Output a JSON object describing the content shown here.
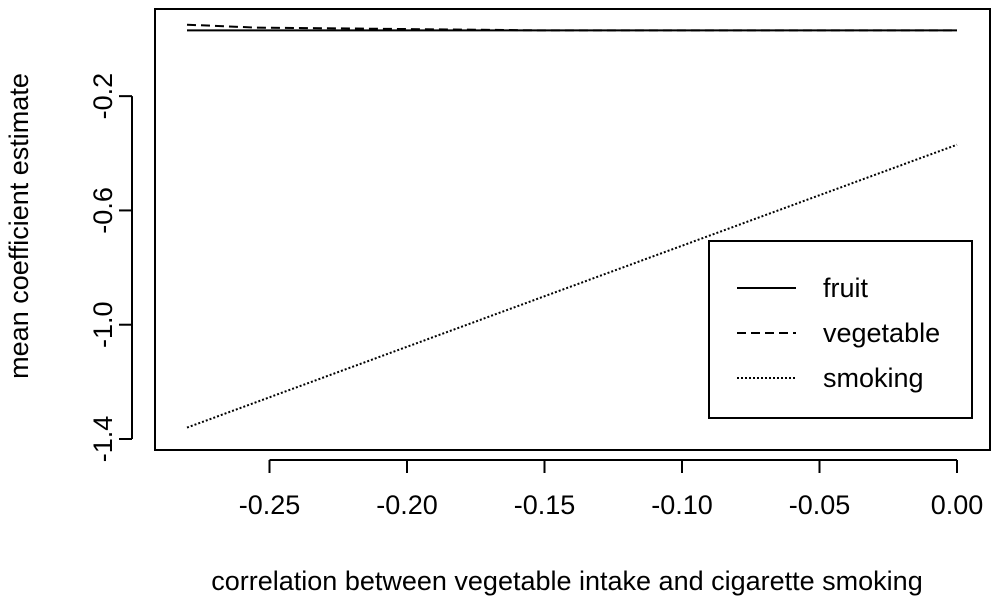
{
  "chart_data": {
    "type": "line",
    "xlabel": "correlation between vegetable intake and cigarette smoking",
    "ylabel": "mean coefficient estimate",
    "xlim": [
      -0.28,
      0.0
    ],
    "ylim": [
      -1.4,
      0.0
    ],
    "x_ticks": [
      -0.25,
      -0.2,
      -0.15,
      -0.1,
      -0.05,
      0.0
    ],
    "x_tick_labels": [
      "-0.25",
      "-0.20",
      "-0.15",
      "-0.10",
      "-0.05",
      "0.00"
    ],
    "y_ticks": [
      -1.4,
      -1.0,
      -0.6,
      -0.2
    ],
    "y_tick_labels": [
      "-1.4",
      "-1.0",
      "-0.6",
      "-0.2"
    ],
    "grid": false,
    "legend_position": "bottom-right",
    "series": [
      {
        "name": "fruit",
        "line_style": "solid",
        "x": [
          -0.28,
          0.0
        ],
        "y": [
          0.03,
          0.03
        ]
      },
      {
        "name": "vegetable",
        "line_style": "dashed",
        "x": [
          -0.28,
          -0.255,
          -0.15,
          -0.1,
          -0.05,
          0.0
        ],
        "y": [
          0.05,
          0.04,
          0.03,
          0.03,
          0.03,
          0.03
        ]
      },
      {
        "name": "smoking",
        "line_style": "dotted",
        "x": [
          -0.28,
          0.0
        ],
        "y": [
          -1.36,
          -0.37
        ]
      }
    ]
  },
  "colors": {
    "line": "#000000",
    "background": "#ffffff"
  }
}
